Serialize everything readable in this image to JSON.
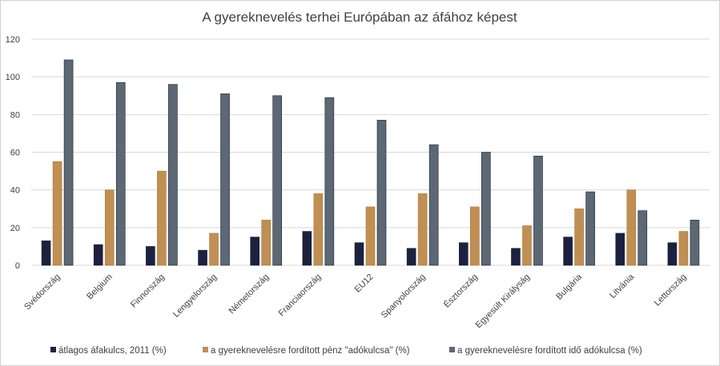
{
  "chart_data": {
    "type": "bar",
    "title": "A gyereknevelés terhei Európában az áfához képest",
    "xlabel": "",
    "ylabel": "",
    "ylim": [
      0,
      120
    ],
    "yticks": [
      0,
      20,
      40,
      60,
      80,
      100,
      120
    ],
    "grid": true,
    "legend_position": "bottom",
    "categories": [
      "Svédország",
      "Belgium",
      "Finnország",
      "Lengyelország",
      "Németország",
      "Franciaország",
      "EU12",
      "Spanyolország",
      "Észtország",
      "Egyesült Királyság",
      "Bulgária",
      "Litvánia",
      "Lettország"
    ],
    "series": [
      {
        "name": "átlagos áfakulcs, 2011 (%)",
        "color": "#1c2140",
        "values": [
          13,
          11,
          10,
          8,
          15,
          18,
          12,
          9,
          12,
          9,
          15,
          17,
          12
        ]
      },
      {
        "name": "a gyereknevelésre fordított pénz \"adókulcsa\" (%)",
        "color": "#c08f53",
        "values": [
          55,
          40,
          50,
          17,
          24,
          38,
          31,
          38,
          31,
          21,
          30,
          40,
          18
        ]
      },
      {
        "name": "a gyereknevelésre fordított idő adókulcsa (%)",
        "color": "#5c6874",
        "values": [
          109,
          97,
          96,
          91,
          90,
          89,
          77,
          64,
          60,
          58,
          39,
          29,
          24
        ]
      }
    ]
  }
}
